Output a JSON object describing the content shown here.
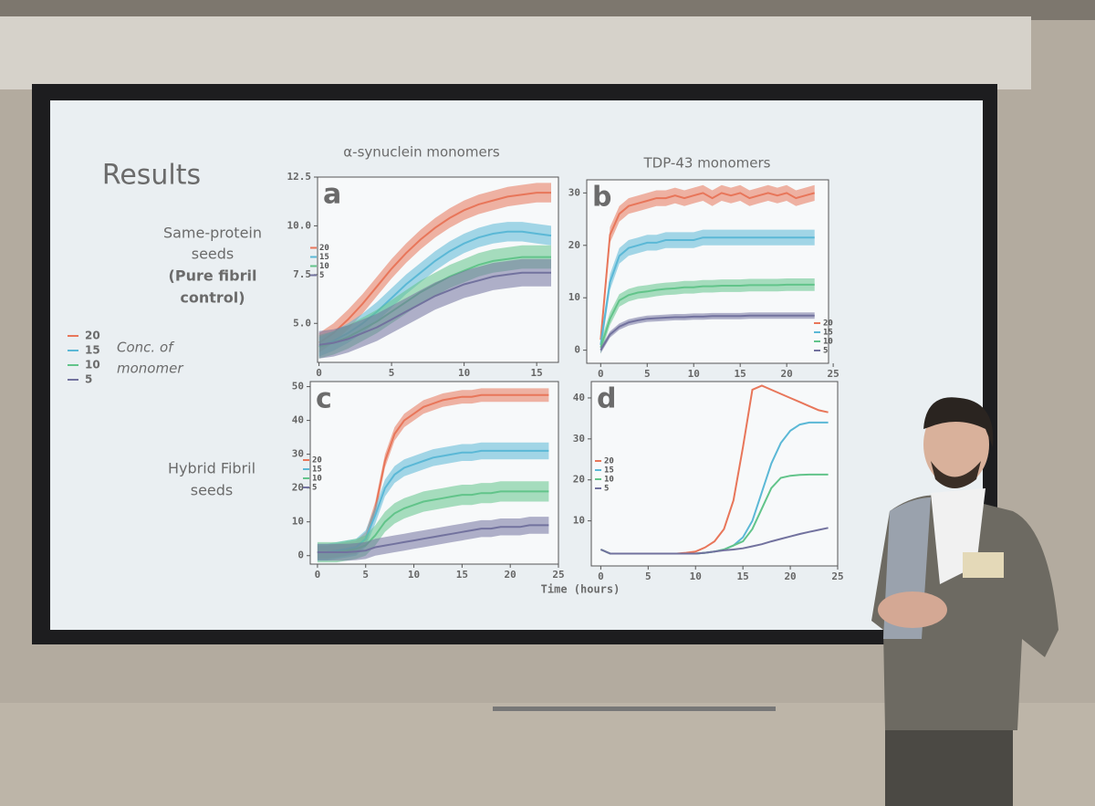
{
  "slide": {
    "title": "Results",
    "columns": [
      "α-synuclein monomers",
      "TDP-43 monomers"
    ],
    "rows": [
      {
        "lines": [
          "Same-protein",
          "seeds"
        ],
        "bold_lines": [
          "(Pure fibril",
          "control)"
        ]
      },
      {
        "lines": [
          "Hybrid Fibril",
          "seeds"
        ]
      }
    ],
    "legend": {
      "title_lines": [
        "Conc. of",
        "monomer"
      ],
      "entries": [
        "20",
        "15",
        "10",
        "5"
      ]
    },
    "xlabel": "Time (hours)"
  },
  "chart_data": [
    {
      "type": "line",
      "title": "a",
      "legend": "left",
      "x": [
        0,
        1,
        2,
        3,
        4,
        5,
        6,
        7,
        8,
        9,
        10,
        11,
        12,
        13,
        14,
        15,
        16
      ],
      "xlim": [
        -0.1,
        16.5
      ],
      "xticks": [
        0,
        5,
        10,
        15
      ],
      "ylim": [
        3,
        12.5
      ],
      "yticks": [
        {
          "value": 5,
          "label": "5.0"
        },
        7.5,
        {
          "value": 10,
          "label": "10.0"
        },
        12.5
      ],
      "series": [
        {
          "name": "20",
          "color": "#e8765a",
          "error": 0.5,
          "values": [
            4,
            4.5,
            5.2,
            6.0,
            6.9,
            7.8,
            8.6,
            9.3,
            9.9,
            10.4,
            10.8,
            11.1,
            11.3,
            11.5,
            11.6,
            11.7,
            11.7
          ]
        },
        {
          "name": "15",
          "color": "#5bb8d6",
          "error": 0.5,
          "values": [
            3.8,
            4.1,
            4.5,
            5.0,
            5.6,
            6.3,
            7.0,
            7.6,
            8.2,
            8.7,
            9.1,
            9.4,
            9.6,
            9.7,
            9.7,
            9.6,
            9.5
          ]
        },
        {
          "name": "10",
          "color": "#62c48a",
          "error": 0.6,
          "values": [
            3.8,
            4.0,
            4.3,
            4.7,
            5.1,
            5.6,
            6.1,
            6.6,
            7.0,
            7.4,
            7.7,
            8.0,
            8.2,
            8.3,
            8.4,
            8.4,
            8.4
          ]
        },
        {
          "name": "5",
          "color": "#72729e",
          "error": 0.7,
          "values": [
            3.9,
            4.0,
            4.2,
            4.5,
            4.8,
            5.2,
            5.6,
            6.0,
            6.4,
            6.7,
            7.0,
            7.2,
            7.4,
            7.5,
            7.6,
            7.6,
            7.6
          ]
        }
      ]
    },
    {
      "type": "line",
      "title": "b",
      "legend": "lower right",
      "x": [
        0,
        1,
        2,
        3,
        4,
        5,
        6,
        7,
        8,
        9,
        10,
        11,
        12,
        13,
        14,
        15,
        16,
        17,
        18,
        19,
        20,
        21,
        22,
        23
      ],
      "xlim": [
        -1.5,
        24.5
      ],
      "xticks": [
        0,
        5,
        10,
        15,
        20,
        25
      ],
      "ylim": [
        -2.5,
        32.5
      ],
      "yticks": [
        0,
        10,
        20,
        30
      ],
      "series": [
        {
          "name": "20",
          "color": "#e8765a",
          "error": 1.5,
          "values": [
            2,
            22,
            26,
            27.5,
            28,
            28.5,
            29,
            29,
            29.5,
            29,
            29.5,
            30,
            29,
            30,
            29.5,
            30,
            29,
            29.5,
            30,
            29.5,
            30,
            29,
            29.5,
            30
          ]
        },
        {
          "name": "15",
          "color": "#5bb8d6",
          "error": 1.5,
          "values": [
            1,
            13,
            18,
            19.5,
            20,
            20.5,
            20.5,
            21,
            21,
            21,
            21,
            21.5,
            21.5,
            21.5,
            21.5,
            21.5,
            21.5,
            21.5,
            21.5,
            21.5,
            21.5,
            21.5,
            21.5,
            21.5
          ]
        },
        {
          "name": "10",
          "color": "#62c48a",
          "error": 1.2,
          "values": [
            0.5,
            6,
            9.5,
            10.5,
            11,
            11.2,
            11.5,
            11.7,
            11.8,
            12,
            12,
            12.2,
            12.2,
            12.3,
            12.3,
            12.3,
            12.4,
            12.4,
            12.4,
            12.4,
            12.5,
            12.5,
            12.5,
            12.5
          ]
        },
        {
          "name": "5",
          "color": "#72729e",
          "error": 0.6,
          "values": [
            0,
            3,
            4.5,
            5.3,
            5.7,
            6,
            6.1,
            6.2,
            6.3,
            6.3,
            6.4,
            6.4,
            6.5,
            6.5,
            6.5,
            6.5,
            6.6,
            6.6,
            6.6,
            6.6,
            6.6,
            6.6,
            6.6,
            6.6
          ]
        }
      ]
    },
    {
      "type": "line",
      "title": "c",
      "legend": "left",
      "x": [
        0,
        1,
        2,
        3,
        4,
        5,
        6,
        7,
        8,
        9,
        10,
        11,
        12,
        13,
        14,
        15,
        16,
        17,
        18,
        19,
        20,
        21,
        22,
        23,
        24
      ],
      "xlim": [
        -0.75,
        25
      ],
      "xticks": [
        0,
        5,
        10,
        15,
        20,
        25
      ],
      "ylim": [
        -2.5,
        51.5
      ],
      "yticks": [
        0,
        10,
        20,
        30,
        40,
        50
      ],
      "series": [
        {
          "name": "20",
          "color": "#e8765a",
          "error": 2,
          "values": [
            1,
            1,
            1.5,
            2,
            2.5,
            5,
            14,
            28,
            36,
            40,
            42,
            44,
            45,
            46,
            46.5,
            47,
            47,
            47.5,
            47.5,
            47.5,
            47.5,
            47.5,
            47.5,
            47.5,
            47.5
          ]
        },
        {
          "name": "15",
          "color": "#5bb8d6",
          "error": 2.5,
          "values": [
            1,
            1,
            1.5,
            2,
            2.5,
            5,
            12,
            20,
            24,
            26,
            27,
            28,
            29,
            29.5,
            30,
            30.5,
            30.5,
            31,
            31,
            31,
            31,
            31,
            31,
            31,
            31
          ]
        },
        {
          "name": "10",
          "color": "#62c48a",
          "error": 3,
          "values": [
            1,
            1,
            1,
            1.5,
            2,
            3,
            6,
            10,
            12.5,
            14,
            15,
            16,
            16.5,
            17,
            17.5,
            18,
            18,
            18.5,
            18.5,
            19,
            19,
            19,
            19,
            19,
            19
          ]
        },
        {
          "name": "5",
          "color": "#72729e",
          "error": 2.5,
          "values": [
            1,
            1,
            1,
            1,
            1.2,
            1.5,
            2.5,
            3,
            3.5,
            4,
            4.5,
            5,
            5.5,
            6,
            6.5,
            7,
            7.5,
            8,
            8,
            8.5,
            8.5,
            8.5,
            9,
            9,
            9
          ]
        }
      ]
    },
    {
      "type": "line",
      "title": "d",
      "legend": "left",
      "x": [
        0,
        1,
        2,
        3,
        4,
        5,
        6,
        7,
        8,
        9,
        10,
        11,
        12,
        13,
        14,
        15,
        16,
        17,
        18,
        19,
        20,
        21,
        22,
        23,
        24
      ],
      "xlim": [
        -1,
        25
      ],
      "xticks": [
        0,
        5,
        10,
        15,
        20,
        25
      ],
      "ylim": [
        -1,
        44
      ],
      "yticks": [
        10,
        20,
        30,
        40
      ],
      "series": [
        {
          "name": "20",
          "color": "#e8765a",
          "values": [
            3,
            2,
            2,
            2,
            2,
            2,
            2,
            2,
            2,
            2.2,
            2.5,
            3.5,
            5,
            8,
            15,
            28,
            42,
            43,
            42,
            41,
            40,
            39,
            38,
            37,
            36.5
          ]
        },
        {
          "name": "15",
          "color": "#5bb8d6",
          "values": [
            3,
            2,
            2,
            2,
            2,
            2,
            2,
            2,
            2,
            2,
            2,
            2.2,
            2.5,
            3,
            4,
            6,
            10,
            17,
            24,
            29,
            32,
            33.5,
            34,
            34,
            34
          ]
        },
        {
          "name": "10",
          "color": "#62c48a",
          "values": [
            3,
            2,
            2,
            2,
            2,
            2,
            2,
            2,
            2,
            2,
            2,
            2.2,
            2.5,
            3,
            4,
            5,
            8,
            13,
            18,
            20.5,
            21,
            21.2,
            21.3,
            21.3,
            21.3
          ]
        },
        {
          "name": "5",
          "color": "#72729e",
          "values": [
            3,
            2,
            2,
            2,
            2,
            2,
            2,
            2,
            2,
            2,
            2,
            2.2,
            2.5,
            2.8,
            3,
            3.3,
            3.8,
            4.3,
            5,
            5.6,
            6.2,
            6.8,
            7.3,
            7.8,
            8.3
          ]
        }
      ]
    }
  ]
}
